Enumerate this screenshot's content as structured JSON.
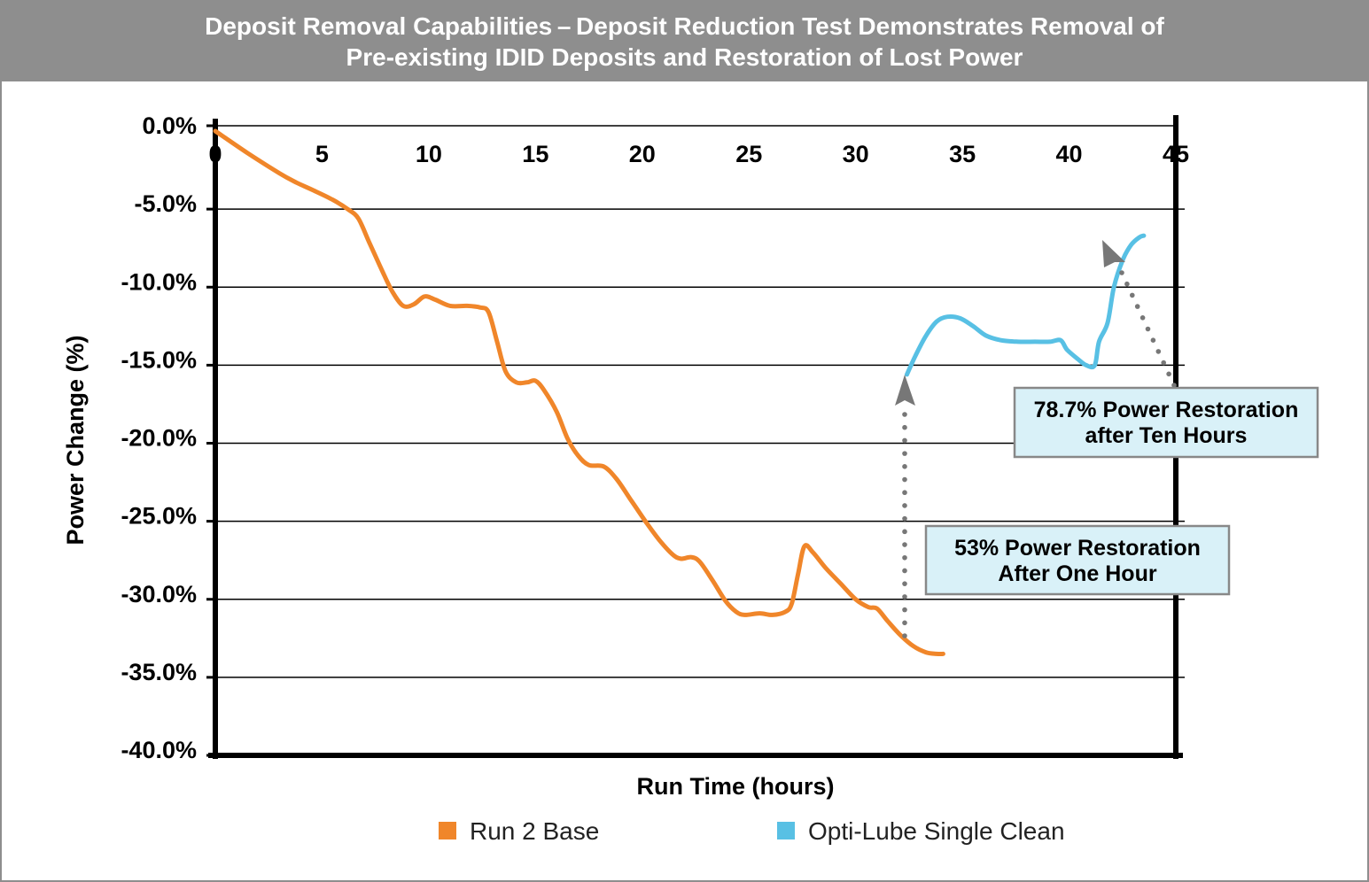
{
  "chart_data": {
    "type": "line",
    "title": [
      "Deposit Removal Capabilities – Deposit Reduction Test Demonstrates Removal of",
      "Pre-existing IDID Deposits and Restoration of Lost Power"
    ],
    "xlabel": "Run Time (hours)",
    "ylabel": "Power Change (%)",
    "xlim": [
      0,
      45
    ],
    "ylim": [
      -40,
      0
    ],
    "x_ticks": [
      0,
      5,
      10,
      15,
      20,
      25,
      30,
      35,
      40,
      45
    ],
    "x_tick_labels": [
      "0",
      "5",
      "10",
      "15",
      "20",
      "25",
      "30",
      "35",
      "40",
      "45"
    ],
    "y_ticks": [
      0,
      -5,
      -10,
      -15,
      -20,
      -25,
      -30,
      -35,
      -40
    ],
    "y_tick_labels": [
      "0.0%",
      "-5.0%",
      "-10.0%",
      "-15.0%",
      "-20.0%",
      "-25.0%",
      "-30.0%",
      "-35.0%",
      "-40.0%"
    ],
    "grid": "horizontal",
    "legend_position": "bottom",
    "series": [
      {
        "name": "Run 2 Base",
        "color": "#f0862a",
        "points": [
          [
            0,
            0
          ],
          [
            1.5,
            -1.4
          ],
          [
            3,
            -2.7
          ],
          [
            3.8,
            -3.3
          ],
          [
            4.6,
            -3.8
          ],
          [
            5.5,
            -4.4
          ],
          [
            6.2,
            -5.0
          ],
          [
            6.7,
            -5.6
          ],
          [
            7.2,
            -7.1
          ],
          [
            7.8,
            -8.9
          ],
          [
            8.3,
            -10.3
          ],
          [
            8.8,
            -11.2
          ],
          [
            9.3,
            -11.1
          ],
          [
            9.8,
            -10.6
          ],
          [
            10.3,
            -10.8
          ],
          [
            11,
            -11.2
          ],
          [
            11.8,
            -11.2
          ],
          [
            12.4,
            -11.3
          ],
          [
            12.8,
            -11.6
          ],
          [
            13.2,
            -13.5
          ],
          [
            13.6,
            -15.4
          ],
          [
            14.1,
            -16.1
          ],
          [
            14.6,
            -16.1
          ],
          [
            15,
            -16.0
          ],
          [
            15.4,
            -16.6
          ],
          [
            16,
            -18.0
          ],
          [
            16.5,
            -19.7
          ],
          [
            17,
            -20.8
          ],
          [
            17.5,
            -21.4
          ],
          [
            18.2,
            -21.5
          ],
          [
            18.8,
            -22.3
          ],
          [
            19.5,
            -23.7
          ],
          [
            20.2,
            -25.1
          ],
          [
            20.8,
            -26.2
          ],
          [
            21.4,
            -27.1
          ],
          [
            21.8,
            -27.4
          ],
          [
            22.3,
            -27.3
          ],
          [
            22.7,
            -27.6
          ],
          [
            23.3,
            -28.8
          ],
          [
            23.9,
            -30.1
          ],
          [
            24.4,
            -30.8
          ],
          [
            24.8,
            -31.0
          ],
          [
            25.5,
            -30.9
          ],
          [
            26.1,
            -31.0
          ],
          [
            26.7,
            -30.8
          ],
          [
            27,
            -30.3
          ],
          [
            27.3,
            -28.4
          ],
          [
            27.6,
            -26.6
          ],
          [
            28,
            -27.0
          ],
          [
            28.6,
            -28.0
          ],
          [
            29.3,
            -29.0
          ],
          [
            30,
            -30.0
          ],
          [
            30.6,
            -30.5
          ],
          [
            31,
            -30.6
          ],
          [
            31.5,
            -31.4
          ],
          [
            32.1,
            -32.3
          ],
          [
            32.7,
            -33.0
          ],
          [
            33.3,
            -33.4
          ],
          [
            33.8,
            -33.5
          ],
          [
            34.1,
            -33.5
          ]
        ]
      },
      {
        "name": "Opti-Lube Single Clean",
        "color": "#58c0e4",
        "points": [
          [
            32.4,
            -15.6
          ],
          [
            32.8,
            -14.4
          ],
          [
            33.3,
            -13.1
          ],
          [
            33.8,
            -12.2
          ],
          [
            34.3,
            -11.9
          ],
          [
            34.9,
            -12.0
          ],
          [
            35.5,
            -12.5
          ],
          [
            36.1,
            -13.1
          ],
          [
            36.8,
            -13.4
          ],
          [
            37.6,
            -13.5
          ],
          [
            38.4,
            -13.5
          ],
          [
            39.1,
            -13.5
          ],
          [
            39.6,
            -13.4
          ],
          [
            39.9,
            -14.0
          ],
          [
            40.4,
            -14.6
          ],
          [
            40.8,
            -15.0
          ],
          [
            41.2,
            -15.0
          ],
          [
            41.4,
            -13.5
          ],
          [
            41.8,
            -12.3
          ],
          [
            42.1,
            -10.0
          ],
          [
            42.5,
            -8.3
          ],
          [
            42.9,
            -7.3
          ],
          [
            43.3,
            -6.8
          ],
          [
            43.5,
            -6.7
          ]
        ]
      }
    ],
    "annotations": [
      {
        "lines": [
          "53% Power Restoration",
          "After One Hour"
        ]
      },
      {
        "lines": [
          "78.7% Power Restoration",
          "after Ten Hours"
        ]
      }
    ]
  }
}
